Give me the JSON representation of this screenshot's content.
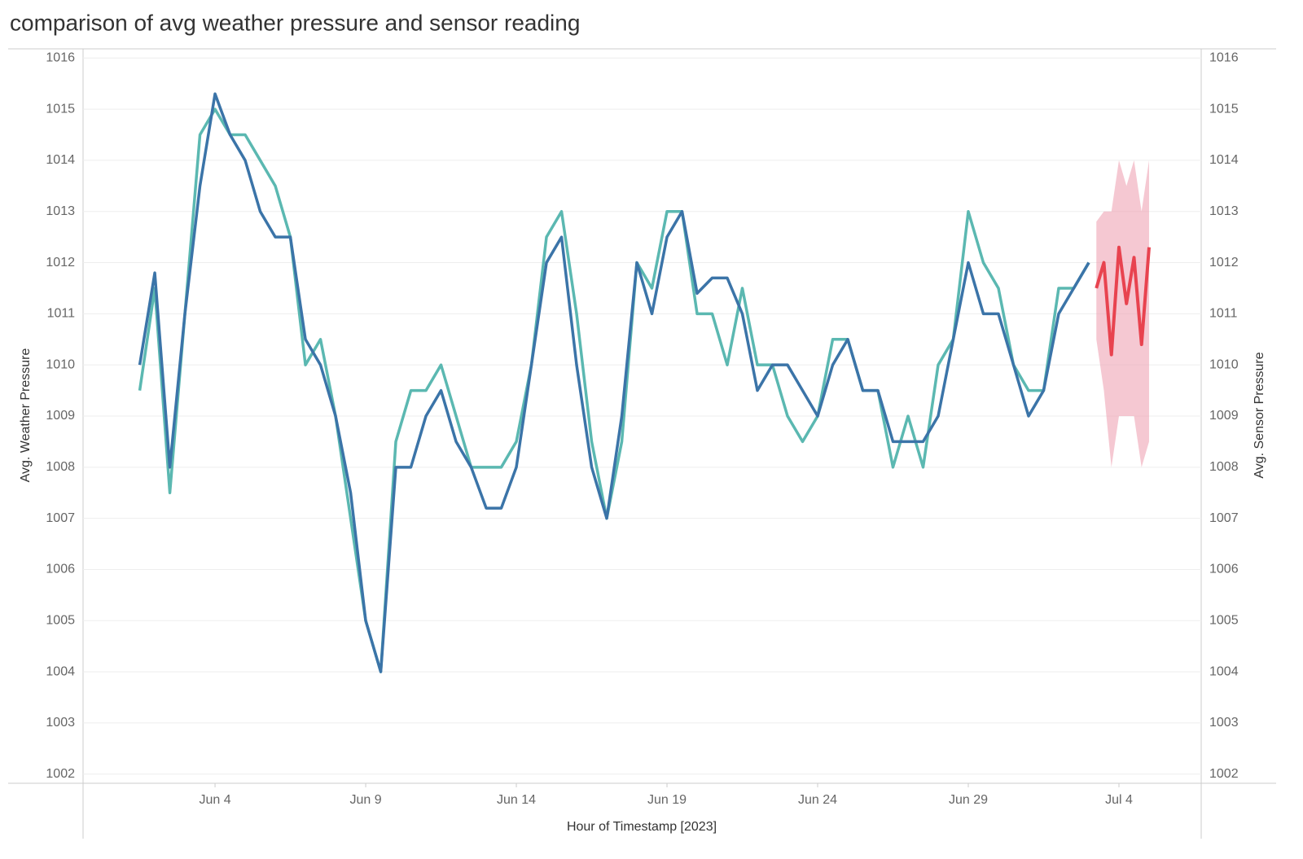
{
  "chart_data": {
    "type": "line",
    "title": "comparison of avg weather pressure and sensor reading",
    "xlabel": "Hour of Timestamp [2023]",
    "ylabel": "Avg. Weather Pressure",
    "y2label": "Avg. Sensor Pressure",
    "xlim": [
      -0.38,
      36.73
    ],
    "xticks": [
      {
        "value": 4,
        "label": "Jun 4"
      },
      {
        "value": 9,
        "label": "Jun 9"
      },
      {
        "value": 14,
        "label": "Jun 14"
      },
      {
        "value": 19,
        "label": "Jun 19"
      },
      {
        "value": 24,
        "label": "Jun 24"
      },
      {
        "value": 29,
        "label": "Jun 29"
      },
      {
        "value": 34,
        "label": "Jul 4"
      }
    ],
    "ylim": [
      1001.82,
      1016.18
    ],
    "yticks": [
      1002,
      1003,
      1004,
      1005,
      1006,
      1007,
      1008,
      1009,
      1010,
      1011,
      1012,
      1013,
      1014,
      1015,
      1016
    ],
    "y2lim": [
      1001.82,
      1016.18
    ],
    "y2ticks": [
      1002,
      1003,
      1004,
      1005,
      1006,
      1007,
      1008,
      1009,
      1010,
      1011,
      1012,
      1013,
      1014,
      1015,
      1016
    ],
    "grid": true,
    "x": [
      1.5,
      2,
      2.5,
      3,
      3.5,
      4,
      4.5,
      5,
      5.5,
      6,
      6.5,
      7,
      7.5,
      8,
      8.5,
      9,
      9.5,
      10,
      10.5,
      11,
      11.5,
      12,
      12.5,
      13,
      13.5,
      14,
      14.5,
      15,
      15.5,
      16,
      16.5,
      17,
      17.5,
      18,
      18.5,
      19,
      19.5,
      20,
      20.5,
      21,
      21.5,
      22,
      22.5,
      23,
      23.5,
      24,
      24.5,
      25,
      25.5,
      26,
      26.5,
      27,
      27.5,
      28,
      28.5,
      29,
      29.5,
      30,
      30.5,
      31,
      31.5,
      32,
      32.5,
      33
    ],
    "series": [
      {
        "color": "#5bb8b1",
        "axis": "y",
        "values": [
          1009.5,
          1011.5,
          1007.5,
          1011,
          1014.5,
          1015,
          1014.5,
          1014.5,
          1014,
          1013.5,
          1012.5,
          1010,
          1010.5,
          1009,
          1007,
          1005,
          1004,
          1008.5,
          1009.5,
          1009.5,
          1010,
          1009,
          1008,
          1008,
          1008,
          1008.5,
          1010,
          1012.5,
          1013,
          1011,
          1008.5,
          1007,
          1008.5,
          1012,
          1011.5,
          1013,
          1013,
          1011,
          1011,
          1010,
          1011.5,
          1010,
          1010,
          1009,
          1008.5,
          1009,
          1010.5,
          1010.5,
          1009.5,
          1009.5,
          1008,
          1009,
          1008,
          1010,
          1010.5,
          1013,
          1012,
          1011.5,
          1010,
          1009.5,
          1009.5,
          1011.5,
          1011.5,
          1012
        ]
      },
      {
        "color": "#3b74a8",
        "axis": "y2",
        "values": [
          1010,
          1011.8,
          1008,
          1011,
          1013.5,
          1015.3,
          1014.5,
          1014,
          1013,
          1012.5,
          1012.5,
          1010.5,
          1010,
          1009,
          1007.5,
          1005,
          1004,
          1008,
          1008,
          1009,
          1009.5,
          1008.5,
          1008,
          1007.2,
          1007.2,
          1008,
          1010,
          1012,
          1012.5,
          1010,
          1008,
          1007,
          1009,
          1012,
          1011,
          1012.5,
          1013,
          1011.4,
          1011.7,
          1011.7,
          1011,
          1009.5,
          1010,
          1010,
          1009.5,
          1009,
          1010,
          1010.5,
          1009.5,
          1009.5,
          1008.5,
          1008.5,
          1008.5,
          1009,
          1010.5,
          1012,
          1011,
          1011,
          1010,
          1009,
          1009.5,
          1011,
          1011.5,
          1012
        ]
      }
    ],
    "forecast": {
      "color": "#e8434f",
      "band_color": "#eea3b4",
      "axis": "y2",
      "x": [
        33.25,
        33.5,
        33.75,
        34,
        34.25,
        34.5,
        34.75,
        35
      ],
      "values": [
        1011.5,
        1012,
        1010.2,
        1012.3,
        1011.2,
        1012.1,
        1010.4,
        1012.3
      ],
      "upper": [
        1012.8,
        1013,
        1013,
        1014,
        1013.5,
        1014,
        1013,
        1014
      ],
      "lower": [
        1010.5,
        1009.5,
        1008,
        1009,
        1009,
        1009,
        1008,
        1008.5
      ]
    }
  }
}
